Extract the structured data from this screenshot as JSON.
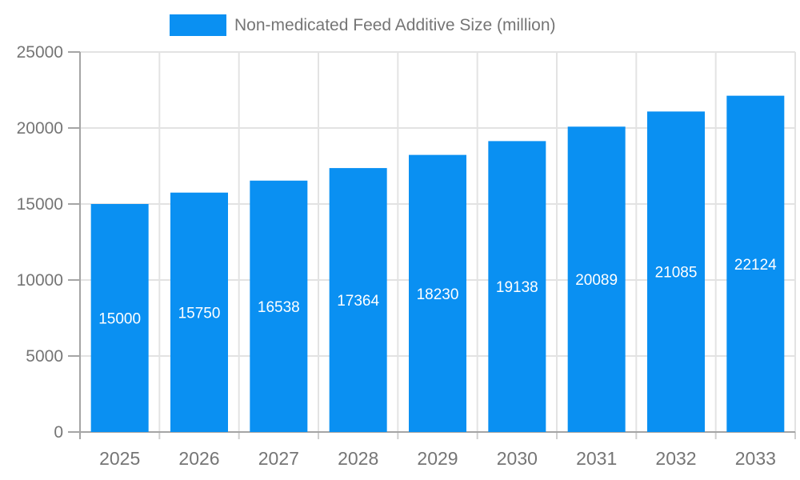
{
  "chart_data": {
    "type": "bar",
    "title": "Non-medicated Feed Additive Size (million)",
    "legend_position": "top",
    "categories": [
      "2025",
      "2026",
      "2027",
      "2028",
      "2029",
      "2030",
      "2031",
      "2032",
      "2033"
    ],
    "series": [
      {
        "name": "Non-medicated Feed Additive Size (million)",
        "values": [
          15000,
          15750,
          16538,
          17364,
          18230,
          19138,
          20089,
          21085,
          22124
        ]
      }
    ],
    "bar_labels": [
      "15000",
      "15750",
      "16538",
      "17364",
      "18230",
      "19138",
      "20089",
      "21085",
      "22124"
    ],
    "xlabel": "",
    "ylabel": "",
    "ylim": [
      0,
      25000
    ],
    "y_ticks": [
      0,
      5000,
      10000,
      15000,
      20000,
      25000
    ],
    "y_tick_labels": [
      "0",
      "5000",
      "10000",
      "15000",
      "20000",
      "25000"
    ],
    "grid": true,
    "colors": {
      "bar": "#0A90F2",
      "bar_label_text": "#ffffff",
      "axis_text": "#757575",
      "grid_line": "#e3e3e3",
      "axis_line": "#a5a5a5",
      "minor_tick": "#cfcfcf"
    }
  }
}
